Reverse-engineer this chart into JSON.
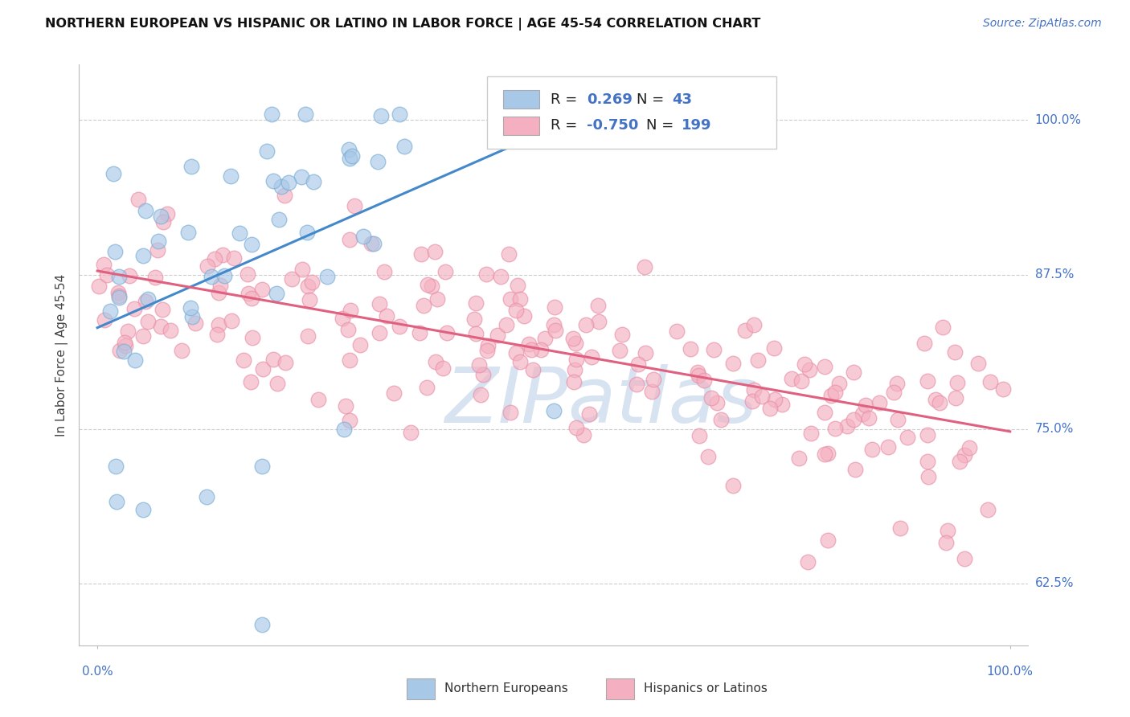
{
  "title": "NORTHERN EUROPEAN VS HISPANIC OR LATINO IN LABOR FORCE | AGE 45-54 CORRELATION CHART",
  "source": "Source: ZipAtlas.com",
  "ylabel": "In Labor Force | Age 45-54",
  "ytick_labels": [
    "62.5%",
    "75.0%",
    "87.5%",
    "100.0%"
  ],
  "ytick_values": [
    0.625,
    0.75,
    0.875,
    1.0
  ],
  "xlim": [
    -0.02,
    1.02
  ],
  "ylim": [
    0.575,
    1.045
  ],
  "watermark": "ZIPatlas",
  "blue_color": "#a8c8e8",
  "blue_edge_color": "#7aaed4",
  "blue_line_color": "#4488cc",
  "pink_color": "#f4b0c0",
  "pink_edge_color": "#e890a8",
  "pink_line_color": "#e06080",
  "blue_R": 0.269,
  "blue_N": 43,
  "pink_R": -0.75,
  "pink_N": 199,
  "blue_line_x0": 0.0,
  "blue_line_x1": 0.55,
  "blue_line_y0": 0.832,
  "blue_line_y1": 1.01,
  "pink_line_x0": 0.0,
  "pink_line_x1": 1.0,
  "pink_line_y0": 0.878,
  "pink_line_y1": 0.748,
  "background_color": "#ffffff",
  "grid_color": "#cccccc",
  "ytick_color": "#4472c4",
  "xtick_color": "#4472c4",
  "title_fontsize": 11.5,
  "source_fontsize": 10,
  "axis_fontsize": 11,
  "legend_fontsize": 13,
  "watermark_color": "#c8d8ec",
  "watermark_alpha": 0.7,
  "watermark_fontsize": 70
}
